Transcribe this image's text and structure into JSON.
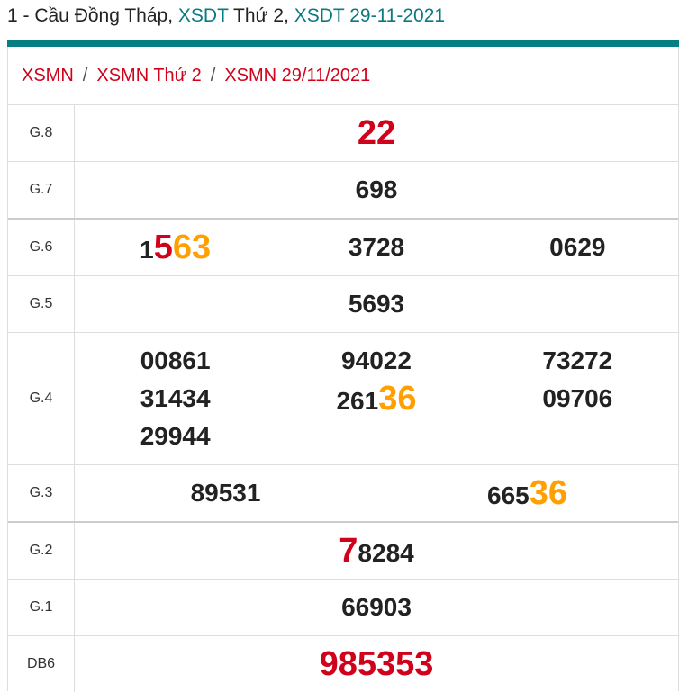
{
  "header": {
    "parts": [
      {
        "text": "1 - Cầu Đồng Tháp, ",
        "teal": false
      },
      {
        "text": "XSDT",
        "teal": true
      },
      {
        "text": " Thứ 2, ",
        "teal": false
      },
      {
        "text": "XSDT 29-11-2021",
        "teal": true
      }
    ]
  },
  "breadcrumb": [
    "XSMN",
    "XSMN Thứ 2",
    "XSMN 29/11/2021"
  ],
  "breadcrumb_sep": "/",
  "colors": {
    "accent": "#077f82",
    "red": "#d0021b",
    "orange": "#ffa000"
  },
  "rows": [
    {
      "label": "G.8",
      "cols": 1,
      "nums": [
        [
          {
            "t": "22",
            "c": "red",
            "big": true
          }
        ]
      ]
    },
    {
      "label": "G.7",
      "cols": 1,
      "nums": [
        [
          {
            "t": "698"
          }
        ]
      ]
    },
    {
      "label": "G.6",
      "cols": 3,
      "thick": true,
      "nums": [
        [
          {
            "t": "1"
          },
          {
            "t": "5",
            "c": "red",
            "big": true
          },
          {
            "t": "63",
            "c": "org",
            "big": true
          }
        ],
        [
          {
            "t": "3728"
          }
        ],
        [
          {
            "t": "0629"
          }
        ]
      ]
    },
    {
      "label": "G.5",
      "cols": 1,
      "nums": [
        [
          {
            "t": "5693"
          }
        ]
      ]
    },
    {
      "label": "G.4",
      "cols": 3,
      "nums": [
        [
          {
            "t": "00861"
          }
        ],
        [
          {
            "t": "94022"
          }
        ],
        [
          {
            "t": "73272"
          }
        ],
        [
          {
            "t": "31434"
          }
        ],
        [
          {
            "t": "261"
          },
          {
            "t": "36",
            "c": "org",
            "big": true
          }
        ],
        [
          {
            "t": "09706"
          }
        ],
        [
          {
            "t": "29944"
          }
        ]
      ]
    },
    {
      "label": "G.3",
      "cols": 2,
      "nums": [
        [
          {
            "t": "89531"
          }
        ],
        [
          {
            "t": "665"
          },
          {
            "t": "36",
            "c": "org",
            "big": true
          }
        ]
      ]
    },
    {
      "label": "G.2",
      "cols": 1,
      "thick": true,
      "nums": [
        [
          {
            "t": "7",
            "c": "red",
            "big": true
          },
          {
            "t": "8284"
          }
        ]
      ]
    },
    {
      "label": "G.1",
      "cols": 1,
      "nums": [
        [
          {
            "t": "66903"
          }
        ]
      ]
    },
    {
      "label": "DB6",
      "cols": 1,
      "nums": [
        [
          {
            "t": "985353",
            "c": "red",
            "big": true
          }
        ]
      ]
    }
  ]
}
